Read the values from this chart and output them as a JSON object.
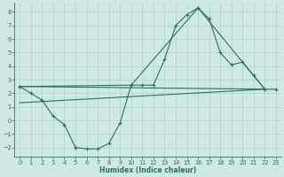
{
  "xlabel": "Humidex (Indice chaleur)",
  "xlim": [
    -0.5,
    23.5
  ],
  "ylim": [
    -2.7,
    8.7
  ],
  "xticks": [
    0,
    1,
    2,
    3,
    4,
    5,
    6,
    7,
    8,
    9,
    10,
    11,
    12,
    13,
    14,
    15,
    16,
    17,
    18,
    19,
    20,
    21,
    22,
    23
  ],
  "yticks": [
    -2,
    -1,
    0,
    1,
    2,
    3,
    4,
    5,
    6,
    7,
    8
  ],
  "background_color": "#cde8e5",
  "grid_color": "#b8d8d5",
  "line_color": "#2d6e65",
  "line1_x": [
    0,
    1,
    2,
    3,
    4,
    5,
    6,
    7,
    8,
    9,
    10,
    11,
    12,
    13,
    14,
    15,
    16,
    17,
    18,
    19,
    20,
    21,
    22,
    23
  ],
  "line1_y": [
    2.5,
    2.0,
    1.5,
    0.3,
    -0.3,
    -2.0,
    -2.1,
    -2.1,
    -1.7,
    -0.2,
    2.6,
    2.6,
    2.6,
    4.5,
    7.0,
    7.8,
    8.3,
    7.5,
    5.0,
    4.1,
    4.3,
    3.3,
    2.3,
    2.3
  ],
  "line2_x": [
    0,
    10,
    16,
    22
  ],
  "line2_y": [
    2.5,
    2.6,
    8.3,
    2.3
  ],
  "line3_x": [
    0,
    22
  ],
  "line3_y": [
    1.3,
    2.3
  ],
  "line4_x": [
    0,
    22
  ],
  "line4_y": [
    2.5,
    2.3
  ]
}
